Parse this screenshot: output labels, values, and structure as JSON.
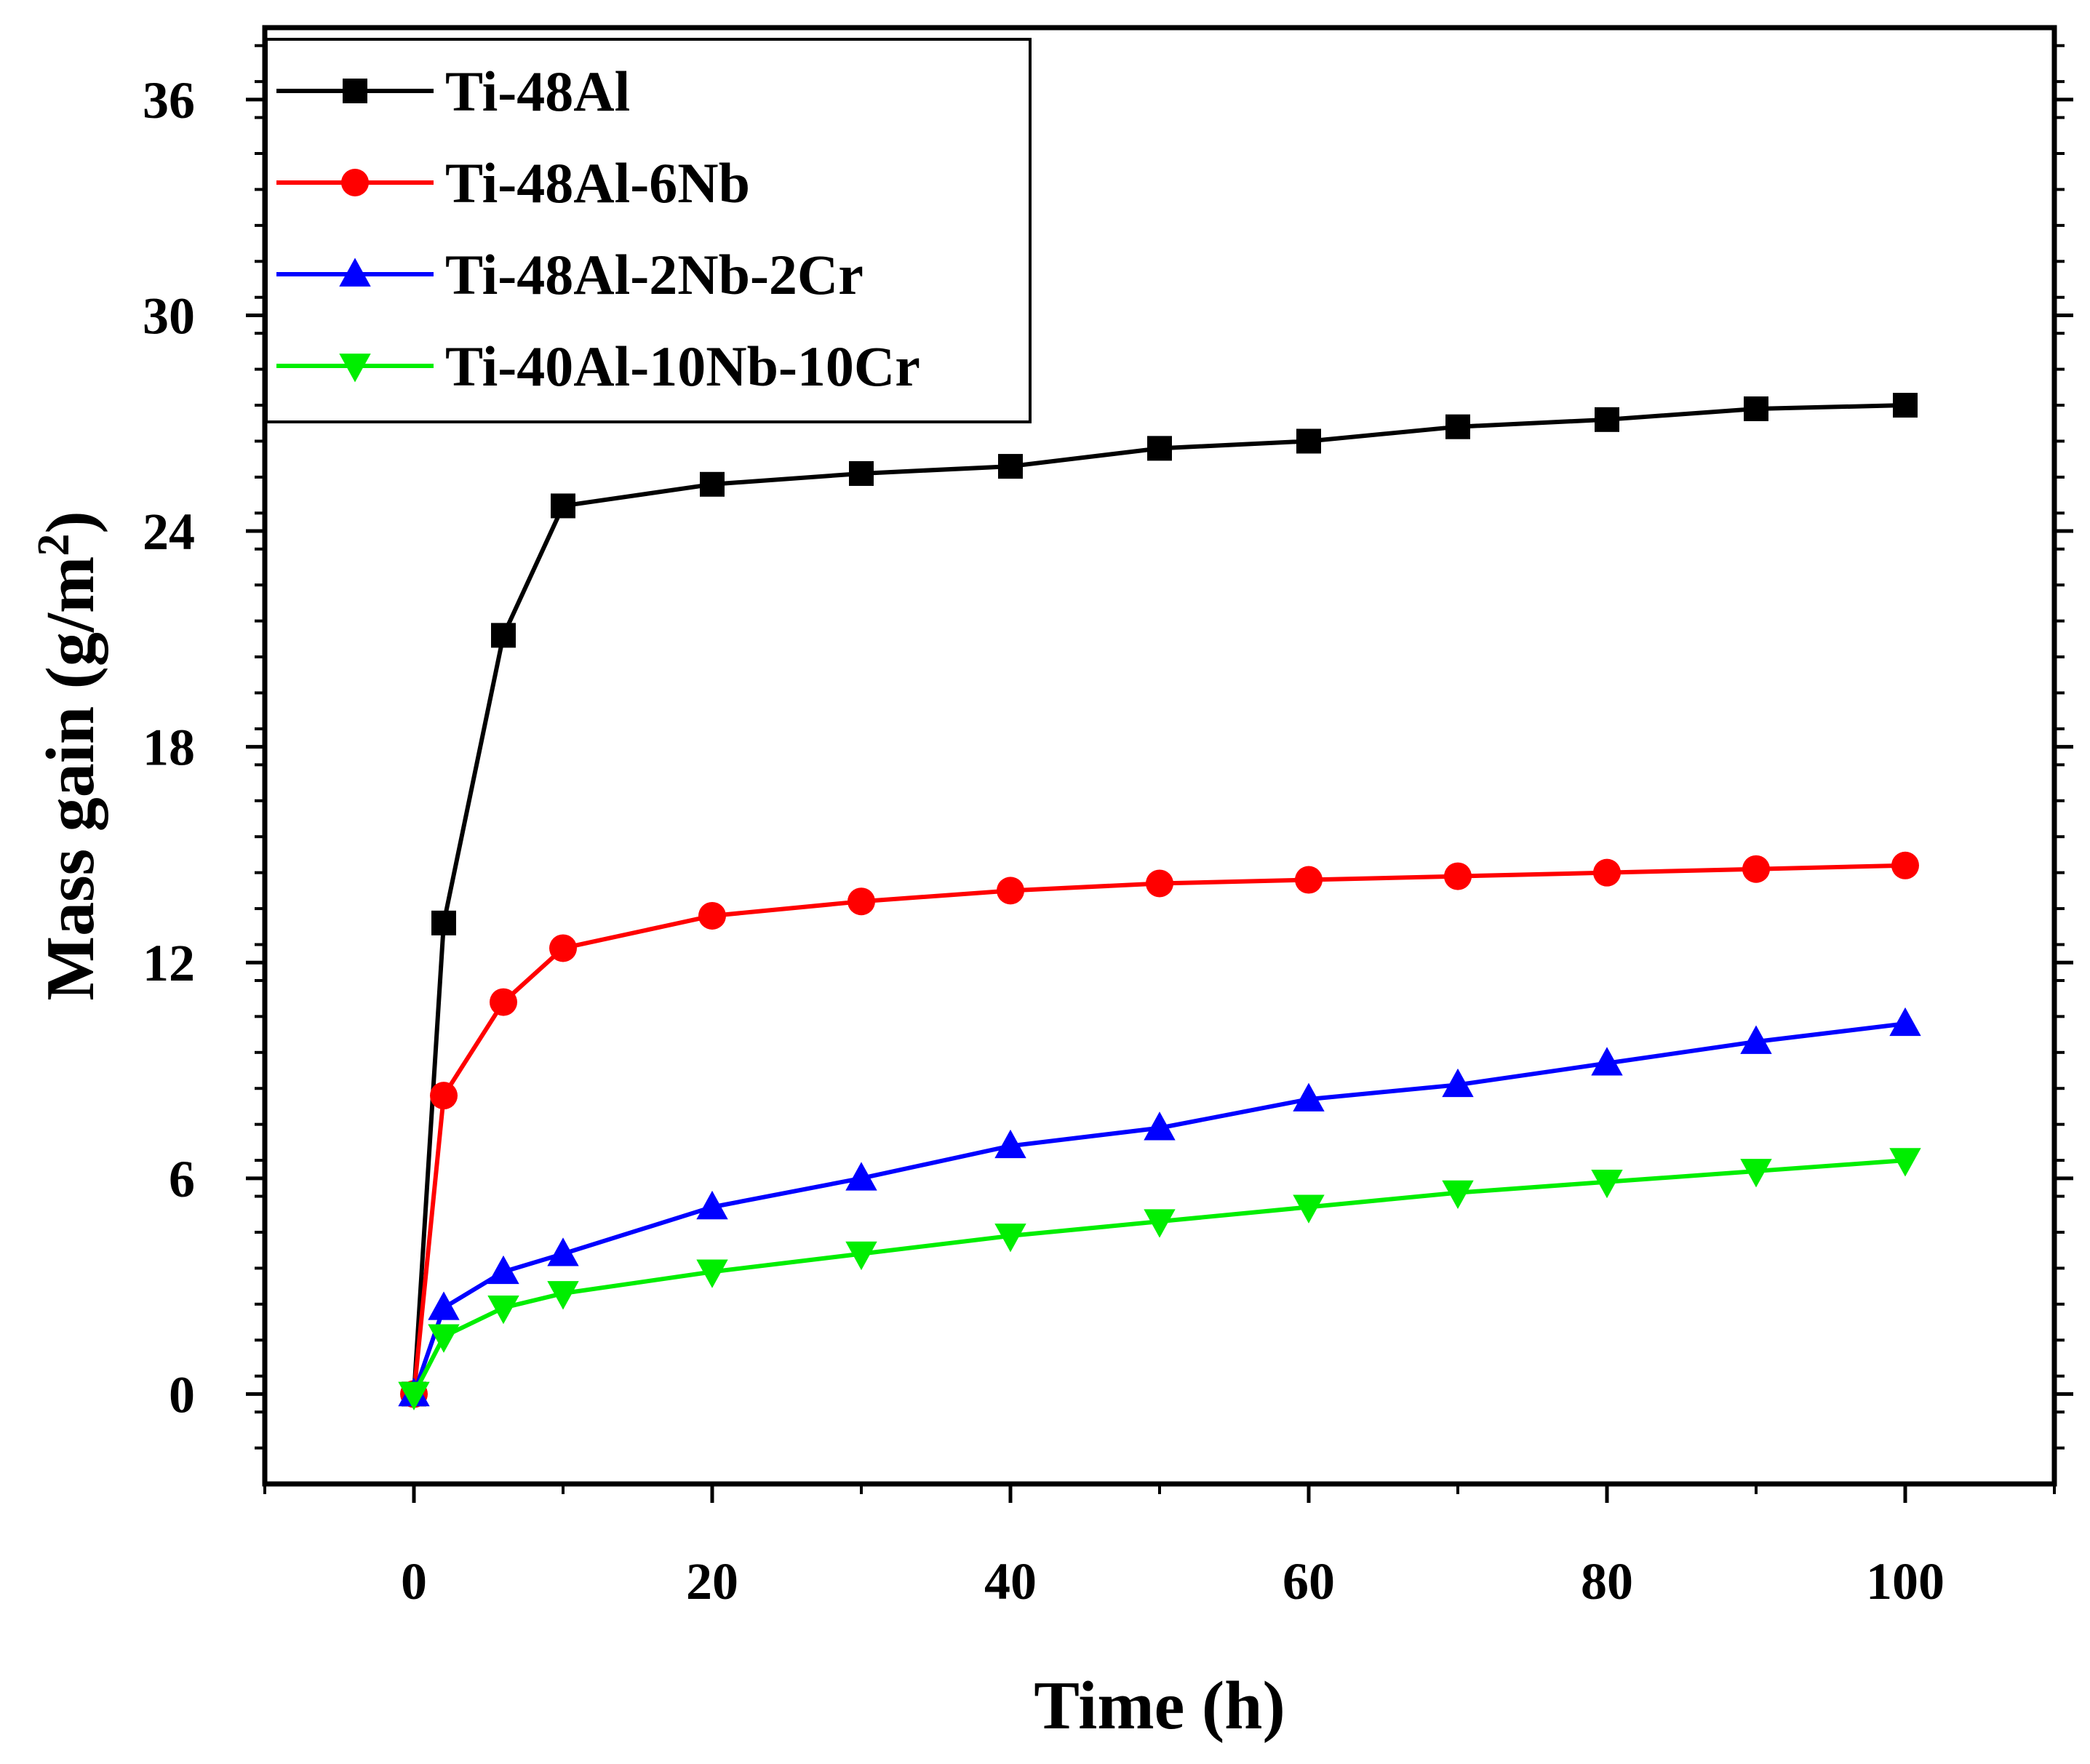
{
  "chart_data": {
    "type": "line",
    "title": "",
    "xlabel": "Time (h)",
    "ylabel_main": "Mass gain (g/m",
    "ylabel_sup": "2",
    "ylabel_close": ")",
    "xlim": [
      -10,
      110
    ],
    "ylim": [
      -2.5,
      38
    ],
    "xticks": [
      0,
      20,
      40,
      60,
      80,
      100
    ],
    "yticks": [
      0,
      6,
      12,
      18,
      24,
      30,
      36
    ],
    "x": [
      0,
      2,
      6,
      10,
      20,
      30,
      40,
      50,
      60,
      70,
      80,
      90,
      100
    ],
    "legend_position": "top-left",
    "series": [
      {
        "name": "Ti-48Al",
        "color": "#000000",
        "marker": "square",
        "values": [
          0,
          13.1,
          21.1,
          24.7,
          25.3,
          25.6,
          25.8,
          26.3,
          26.5,
          26.9,
          27.1,
          27.4,
          27.5
        ]
      },
      {
        "name": "Ti-48Al-6Nb",
        "color": "#ff0000",
        "marker": "circle",
        "values": [
          0,
          8.3,
          10.9,
          12.4,
          13.3,
          13.7,
          14.0,
          14.2,
          14.3,
          14.4,
          14.5,
          14.6,
          14.7
        ]
      },
      {
        "name": "Ti-48Al-2Nb-2Cr",
        "color": "#0000ff",
        "marker": "triangle-up",
        "values": [
          0,
          2.4,
          3.4,
          3.9,
          5.2,
          6.0,
          6.9,
          7.4,
          8.2,
          8.6,
          9.2,
          9.8,
          10.3
        ]
      },
      {
        "name": "Ti-40Al-10Nb-10Cr",
        "color": "#00ee00",
        "marker": "triangle-down",
        "values": [
          0,
          1.6,
          2.4,
          2.8,
          3.4,
          3.9,
          4.4,
          4.8,
          5.2,
          5.6,
          5.9,
          6.2,
          6.5
        ]
      }
    ]
  }
}
